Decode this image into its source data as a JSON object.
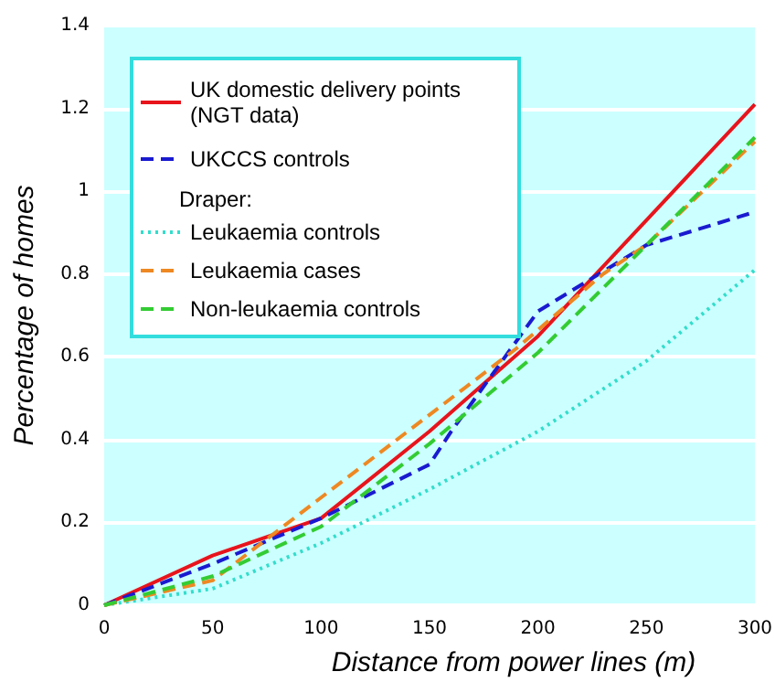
{
  "chart_data": {
    "type": "line",
    "xlabel": "Distance from power lines (m)",
    "ylabel": "Percentage of homes",
    "xlim": [
      0,
      300
    ],
    "xticks": [
      0,
      50,
      100,
      150,
      200,
      250,
      300
    ],
    "ylim": [
      0,
      1.4
    ],
    "yticks": [
      0,
      0.2,
      0.4,
      0.6,
      0.8,
      1.0,
      1.2,
      1.4
    ],
    "grid": "y",
    "legend": "top left",
    "legend_title": "Draper:",
    "marker": "none",
    "series": [
      {
        "name": "UK domestic delivery points (NGT data)",
        "color": "#e8141c",
        "line_style": "solid",
        "x": [
          0,
          50,
          100,
          150,
          200,
          250,
          300
        ],
        "values": [
          0,
          0.12,
          0.21,
          0.42,
          0.65,
          0.93,
          1.21
        ]
      },
      {
        "name": "UKCCS controls",
        "color": "#1a1ad0",
        "line_style": "dashed",
        "x": [
          0,
          50,
          100,
          150,
          160,
          200,
          250,
          300
        ],
        "values": [
          0,
          0.1,
          0.21,
          0.34,
          0.42,
          0.71,
          0.87,
          0.95
        ]
      },
      {
        "name": "Leukaemia controls",
        "color": "#33ddcc",
        "line_style": "dotted",
        "x": [
          0,
          50,
          100,
          150,
          200,
          250,
          300
        ],
        "values": [
          0,
          0.04,
          0.15,
          0.28,
          0.42,
          0.59,
          0.81
        ]
      },
      {
        "name": "Leukaemia cases",
        "color": "#ee8822",
        "line_style": "dashed",
        "x": [
          0,
          50,
          80,
          190,
          230,
          250,
          300
        ],
        "values": [
          0,
          0.06,
          0.18,
          0.62,
          0.8,
          0.87,
          1.12
        ]
      },
      {
        "name": "Non-leukaemia controls",
        "color": "#33cc33",
        "line_style": "dashed",
        "x": [
          0,
          50,
          100,
          150,
          200,
          250,
          300
        ],
        "values": [
          0,
          0.07,
          0.19,
          0.39,
          0.61,
          0.87,
          1.13
        ]
      }
    ]
  }
}
